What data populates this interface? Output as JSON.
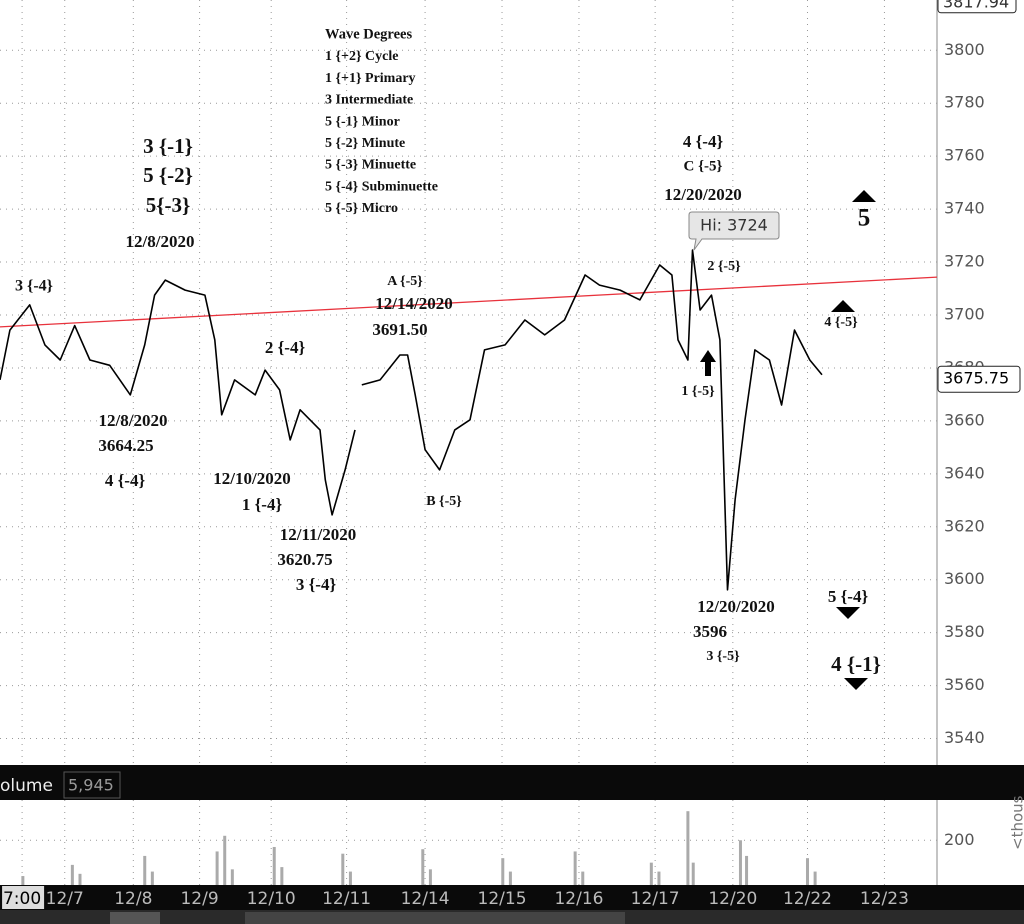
{
  "chart_data": [
    {
      "type": "line",
      "color": "#000000",
      "x": [
        0,
        0.13,
        0.39,
        0.59,
        0.79,
        0.98,
        1.18,
        1.44,
        1.71,
        1.9,
        2.03,
        2.17,
        2.43,
        2.69,
        2.82,
        2.91,
        3.08,
        3.35,
        3.48,
        3.67,
        3.81,
        3.94,
        4.2,
        4.27,
        4.36,
        4.53,
        4.66,
        4.7,
        4.75,
        4.99,
        5.25,
        5.35,
        5.45,
        5.58,
        5.77,
        5.97,
        6.17,
        6.36,
        6.63,
        6.89,
        7.15,
        7.41,
        7.68,
        7.87,
        8.14,
        8.4,
        8.66,
        8.82,
        8.9,
        9.03,
        9.09,
        9.19,
        9.34,
        9.45,
        9.55,
        9.65,
        9.78,
        9.91,
        10.1,
        10.26,
        10.43,
        10.63,
        10.79
      ],
      "values": [
        3675.5,
        3694.3,
        3703.8,
        3688.7,
        3683,
        3696,
        3683,
        3681,
        3669.8,
        3688.7,
        3707.5,
        3713.2,
        3709.4,
        3707.5,
        3690.6,
        3662.3,
        3675.5,
        3669.8,
        3679.2,
        3671.7,
        3652.8,
        3664.2,
        3656.6,
        3637.7,
        3624.5,
        3641.5,
        3656.6,
        null,
        3673.6,
        3675.5,
        3684.9,
        3684.9,
        3669.8,
        3649.1,
        3641.5,
        3656.6,
        3660.4,
        3686.8,
        3688.7,
        3698.1,
        3692.5,
        3698.1,
        3715.1,
        3711.3,
        3709.4,
        3705.7,
        3718.9,
        3715.1,
        3690.6,
        3683,
        3724.5,
        3701.9,
        3707.5,
        3690.6,
        3596.2,
        3630.2,
        3660.4,
        3686.8,
        3683,
        3666,
        3694.3,
        3683,
        3677.4
      ],
      "xlim": [
        0,
        12.3
      ],
      "ylim": [
        3530,
        3819
      ],
      "yticks": [
        3540,
        3560,
        3580,
        3600,
        3620,
        3640,
        3660,
        3680,
        3700,
        3720,
        3740,
        3760,
        3780,
        3800
      ],
      "xticks": [
        {
          "value": 0.29,
          "label": "7:00"
        },
        {
          "value": 0.85,
          "label": "12/7"
        },
        {
          "value": 1.75,
          "label": "12/8"
        },
        {
          "value": 2.62,
          "label": "12/9"
        },
        {
          "value": 3.56,
          "label": "12/10"
        },
        {
          "value": 4.55,
          "label": "12/11"
        },
        {
          "value": 5.58,
          "label": "12/14"
        },
        {
          "value": 6.59,
          "label": "12/15"
        },
        {
          "value": 7.6,
          "label": "12/16"
        },
        {
          "value": 8.6,
          "label": "12/17"
        },
        {
          "value": 9.62,
          "label": "12/20"
        },
        {
          "value": 10.6,
          "label": "12/22"
        },
        {
          "value": 11.61,
          "label": "12/23"
        }
      ],
      "grid": true,
      "trendline": {
        "color": "#e8323c",
        "x": [
          0,
          12.3
        ],
        "values": [
          3695.5,
          3714.3
        ]
      },
      "last_price": 3675.75,
      "top_price": 3817.94,
      "hi_callout": "Hi: 3724",
      "wave_degrees": {
        "title": "Wave Degrees",
        "items": [
          "1 {+2} Cycle",
          "1 {+1}  Primary",
          "3          Intermediate",
          "5 {-1}   Minor",
          "5 {-2}   Minute",
          "5 {-3} Minuette",
          "5 {-4} Subminuette",
          "5 {-5} Micro"
        ]
      },
      "annotations": [
        "3 {-1}",
        "5 {-2}",
        "5{-3}",
        "12/8/2020",
        "3 {-4}",
        "12/8/2020",
        "3664.25",
        "4 {-4}",
        "2 {-4}",
        "12/10/2020",
        "1 {-4}",
        "12/11/2020",
        "3620.75",
        "3 {-4}",
        "A {-5}",
        "12/14/2020",
        "3691.50",
        "B {-5}",
        "4 {-4}",
        "C {-5}",
        "12/20/2020",
        "2 {-5}",
        "1 {-5}",
        "12/20/2020",
        "3596",
        "3 {-5}",
        "5",
        "4 {-5}",
        "5 {-4}",
        "4 {-1}"
      ]
    },
    {
      "type": "bar",
      "color": "#aaaaaa",
      "title": "olume",
      "current": "5,945",
      "unit_label": "<thous",
      "x": [
        0.3,
        0.95,
        1.05,
        1.9,
        2.0,
        2.85,
        2.95,
        3.05,
        3.6,
        3.7,
        4.5,
        4.6,
        5.55,
        5.65,
        6.6,
        6.7,
        7.55,
        7.65,
        8.55,
        8.65,
        9.03,
        9.1,
        9.72,
        9.8,
        10.6,
        10.7
      ],
      "values": [
        40,
        90,
        50,
        130,
        60,
        150,
        220,
        70,
        170,
        80,
        140,
        60,
        160,
        70,
        120,
        60,
        150,
        60,
        100,
        60,
        330,
        100,
        200,
        130,
        120,
        60
      ],
      "xlim": [
        0,
        12.3
      ],
      "ylim": [
        0,
        380
      ],
      "yticks": [
        200
      ]
    }
  ]
}
